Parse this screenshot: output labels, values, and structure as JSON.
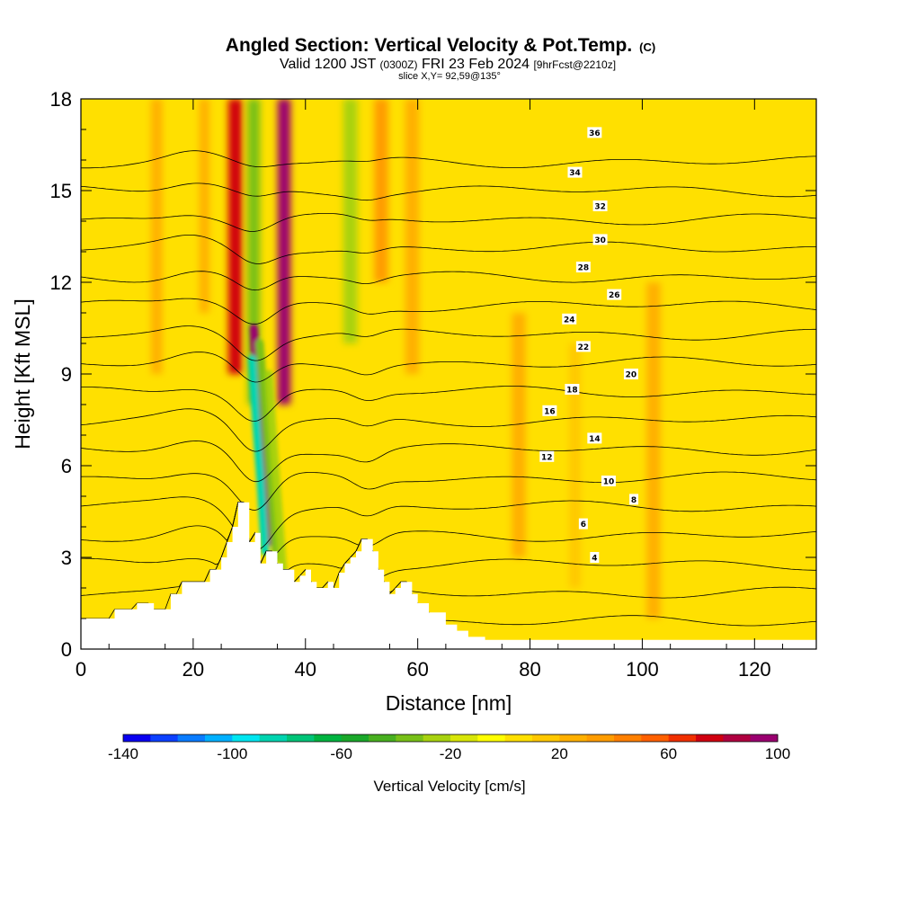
{
  "title": {
    "main": "Angled Section: Vertical Velocity & Pot.Temp.",
    "units": "(C)",
    "valid_prefix": "Valid 1200 JST",
    "valid_utc": "(0300Z)",
    "valid_date": "FRI 23 Feb 2024",
    "forecast": "[9hrFcst@2210z]",
    "slice": "slice X,Y= 92,59@135°"
  },
  "chart_data": {
    "type": "heatmap",
    "xlabel": "Distance [nm]",
    "ylabel": "Height [Kft MSL]",
    "xlim": [
      0,
      131
    ],
    "ylim": [
      0,
      18
    ],
    "x_ticks": [
      0,
      20,
      40,
      60,
      80,
      100,
      120
    ],
    "y_ticks": [
      0,
      3,
      6,
      9,
      12,
      15,
      18
    ],
    "x_tick_labels": [
      "0",
      "20",
      "40",
      "60",
      "80",
      "100",
      "120"
    ],
    "y_tick_labels": [
      "0",
      "3",
      "6",
      "9",
      "12",
      "15",
      "18"
    ],
    "background_velocity_cms": 5,
    "velocity_bands": [
      {
        "x_center": 27.5,
        "width": 2.5,
        "value": 70,
        "y_from": 9,
        "y_to": 18
      },
      {
        "x_center": 30.8,
        "width": 2.2,
        "value": -40,
        "y_from": 8,
        "y_to": 18
      },
      {
        "x_center": 36.2,
        "width": 2.3,
        "value": 90,
        "y_from": 8,
        "y_to": 18
      },
      {
        "x_center": 48,
        "width": 2.5,
        "value": -25,
        "y_from": 10,
        "y_to": 18
      },
      {
        "x_center": 53.5,
        "width": 2.5,
        "value": 35,
        "y_from": 12,
        "y_to": 18
      },
      {
        "x_center": 13.5,
        "width": 2.0,
        "value": 25,
        "y_from": 9,
        "y_to": 18
      },
      {
        "x_center": 22,
        "width": 1.8,
        "value": 25,
        "y_from": 11,
        "y_to": 18
      },
      {
        "x_center": 59,
        "width": 2.5,
        "value": 22,
        "y_from": 9,
        "y_to": 18
      },
      {
        "x_center": 78,
        "width": 2.5,
        "value": 20,
        "y_from": 3,
        "y_to": 11
      },
      {
        "x_center": 88,
        "width": 2.0,
        "value": 18,
        "y_from": 2,
        "y_to": 10
      },
      {
        "x_center": 102,
        "width": 2.5,
        "value": 20,
        "y_from": 1,
        "y_to": 12
      }
    ],
    "velocity_features": [
      {
        "path": [
          [
            33.5,
            3.5
          ],
          [
            32.5,
            6
          ],
          [
            31.5,
            8
          ],
          [
            30.8,
            10.5
          ]
        ],
        "value": 90
      },
      {
        "path": [
          [
            32.8,
            3.2
          ],
          [
            32.0,
            5.5
          ],
          [
            31.2,
            7.5
          ],
          [
            30.5,
            9.5
          ]
        ],
        "value": -90
      },
      {
        "path": [
          [
            34.8,
            3.0
          ],
          [
            33.8,
            5.5
          ],
          [
            32.8,
            7.8
          ],
          [
            31.8,
            10
          ]
        ],
        "value": -40
      },
      {
        "path": [
          [
            36,
            2.5
          ],
          [
            35,
            5
          ],
          [
            34,
            7.5
          ],
          [
            33.5,
            9
          ]
        ],
        "value": -25
      }
    ],
    "terrain_kft": [
      [
        0,
        1.0
      ],
      [
        5,
        1.0
      ],
      [
        6,
        1.3
      ],
      [
        9,
        1.3
      ],
      [
        10,
        1.5
      ],
      [
        12,
        1.5
      ],
      [
        13,
        1.3
      ],
      [
        15,
        1.3
      ],
      [
        16,
        1.8
      ],
      [
        17,
        1.8
      ],
      [
        18,
        2.2
      ],
      [
        22,
        2.2
      ],
      [
        23,
        2.6
      ],
      [
        24,
        2.6
      ],
      [
        25,
        3.0
      ],
      [
        26,
        3.5
      ],
      [
        27,
        4.0
      ],
      [
        28,
        4.8
      ],
      [
        29,
        4.8
      ],
      [
        30,
        3.5
      ],
      [
        31,
        3.8
      ],
      [
        32,
        2.8
      ],
      [
        33,
        3.2
      ],
      [
        34,
        3.2
      ],
      [
        35,
        2.8
      ],
      [
        36,
        2.6
      ],
      [
        37,
        2.6
      ],
      [
        38,
        2.2
      ],
      [
        39,
        2.4
      ],
      [
        40,
        2.6
      ],
      [
        41,
        2.2
      ],
      [
        42,
        2.0
      ],
      [
        43,
        2.0
      ],
      [
        44,
        2.2
      ],
      [
        45,
        2.0
      ],
      [
        46,
        2.5
      ],
      [
        47,
        2.8
      ],
      [
        48,
        3.0
      ],
      [
        49,
        3.2
      ],
      [
        50,
        3.6
      ],
      [
        51,
        3.6
      ],
      [
        52,
        3.2
      ],
      [
        53,
        2.6
      ],
      [
        54,
        2.2
      ],
      [
        55,
        1.8
      ],
      [
        56,
        2.0
      ],
      [
        57,
        2.2
      ],
      [
        58,
        2.2
      ],
      [
        59,
        1.8
      ],
      [
        60,
        1.5
      ],
      [
        62,
        1.2
      ],
      [
        65,
        0.8
      ],
      [
        67,
        0.6
      ],
      [
        69,
        0.4
      ],
      [
        72,
        0.3
      ],
      [
        131,
        0.3
      ]
    ],
    "isentropes_C": [
      {
        "value": 4,
        "label_at": [
          91.5,
          3.0
        ]
      },
      {
        "value": 6,
        "label_at": [
          89.5,
          4.1
        ]
      },
      {
        "value": 8,
        "label_at": [
          98.5,
          4.9
        ]
      },
      {
        "value": 10,
        "label_at": [
          94,
          5.5
        ]
      },
      {
        "value": 12,
        "label_at": [
          83,
          6.3
        ]
      },
      {
        "value": 14,
        "label_at": [
          91.5,
          6.9
        ]
      },
      {
        "value": 16,
        "label_at": [
          83.5,
          7.8
        ]
      },
      {
        "value": 18,
        "label_at": [
          87.5,
          8.5
        ]
      },
      {
        "value": 20,
        "label_at": [
          98,
          9.0
        ]
      },
      {
        "value": 22,
        "label_at": [
          89.5,
          9.9
        ]
      },
      {
        "value": 24,
        "label_at": [
          87,
          10.8
        ]
      },
      {
        "value": 26,
        "label_at": [
          95,
          11.6
        ]
      },
      {
        "value": 28,
        "label_at": [
          89.5,
          12.5
        ]
      },
      {
        "value": 30,
        "label_at": [
          92.5,
          13.4
        ]
      },
      {
        "value": 32,
        "label_at": [
          92.5,
          14.5
        ]
      },
      {
        "value": 34,
        "label_at": [
          88,
          15.6
        ]
      },
      {
        "value": 36,
        "label_at": [
          91.5,
          16.9
        ]
      }
    ],
    "colorbar": {
      "label": "Vertical Velocity [cm/s]",
      "tick_labels": [
        "-140",
        "-100",
        "-60",
        "-20",
        "20",
        "60",
        "100"
      ],
      "tick_values": [
        -140,
        -100,
        -60,
        -20,
        20,
        60,
        100
      ],
      "range": [
        -140,
        100
      ],
      "step": 10,
      "colors": [
        "#0a00f0",
        "#0c40ff",
        "#0a7cff",
        "#00b0ff",
        "#00e6f0",
        "#00d4b0",
        "#00c478",
        "#00b440",
        "#1aa82a",
        "#48b020",
        "#78c018",
        "#a8d210",
        "#d8e608",
        "#ffff00",
        "#ffe000",
        "#ffc800",
        "#ffb000",
        "#ff9c00",
        "#ff8000",
        "#ff6000",
        "#f03000",
        "#d00010",
        "#b00040",
        "#9a0070"
      ]
    }
  }
}
